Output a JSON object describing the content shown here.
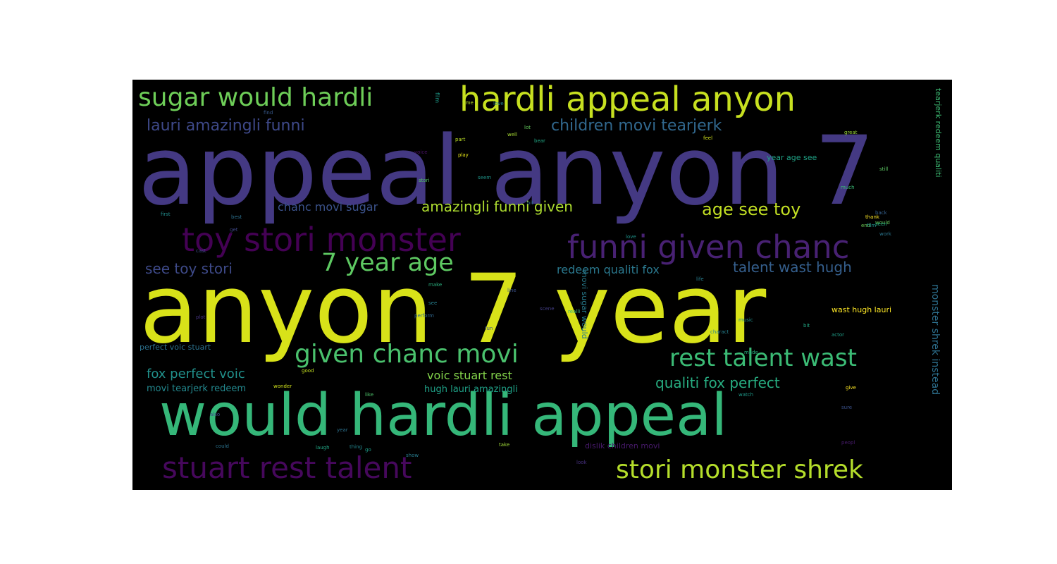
{
  "palette": {
    "background": "#000000",
    "yellow": "#d8e219",
    "green": "#35b779",
    "teal": "#1f9e89",
    "blue": "#31688e",
    "indigo": "#443983",
    "purple": "#440154"
  },
  "words": [
    {
      "text": "appeal anyon 7",
      "color": "#443983"
    },
    {
      "text": "anyon 7 year",
      "color": "#d8e219"
    },
    {
      "text": "would hardli appeal",
      "color": "#35b779"
    },
    {
      "text": "hardli appeal anyon",
      "color": "#c7e020"
    },
    {
      "text": "sugar would hardli",
      "color": "#6ece58"
    },
    {
      "text": "toy stori monster",
      "color": "#440154"
    },
    {
      "text": "funni given chanc",
      "color": "#482173"
    },
    {
      "text": "stuart rest talent",
      "color": "#46085c"
    },
    {
      "text": "stori monster shrek",
      "color": "#b5de2b"
    },
    {
      "text": "given chanc movi",
      "color": "#4ac16d"
    },
    {
      "text": "rest talent wast",
      "color": "#3bbb75"
    },
    {
      "text": "7 year age",
      "color": "#5ec962"
    },
    {
      "text": "lauri amazingli funni",
      "color": "#3e4989"
    },
    {
      "text": "children movi tearjerk",
      "color": "#31688e"
    },
    {
      "text": "amazingli funni given",
      "color": "#addc30"
    },
    {
      "text": "age see toy",
      "color": "#c2df23"
    },
    {
      "text": "chanc movi sugar",
      "color": "#3b528b"
    },
    {
      "text": "see toy stori",
      "color": "#3e4a89"
    },
    {
      "text": "talent wast hugh",
      "color": "#355f8d"
    },
    {
      "text": "redeem qualiti fox",
      "color": "#2a788e"
    },
    {
      "text": "fox perfect voic",
      "color": "#21918c"
    },
    {
      "text": "qualiti fox perfect",
      "color": "#27ad81"
    },
    {
      "text": "voic stuart rest",
      "color": "#84d44b"
    },
    {
      "text": "movi tearjerk redeem",
      "color": "#23888e"
    },
    {
      "text": "hugh lauri amazingli",
      "color": "#1fa187"
    },
    {
      "text": "perfect voic stuart",
      "color": "#2c728e"
    },
    {
      "text": "wast hugh lauri",
      "color": "#fde725"
    },
    {
      "text": "year age see",
      "color": "#20a386"
    },
    {
      "text": "dislik children movi",
      "color": "#481a6c"
    },
    {
      "text": "monster shrek instead",
      "color": "#2d708e"
    },
    {
      "text": "tearjerk redeem qualiti",
      "color": "#3dbc74"
    },
    {
      "text": "movi sugar would",
      "color": "#287c8e"
    },
    {
      "text": "film",
      "color": "#1e9b8a"
    },
    {
      "text": "time",
      "color": "#b8de29"
    },
    {
      "text": "love",
      "color": "#27808e"
    },
    {
      "text": "lot",
      "color": "#65cb5e"
    },
    {
      "text": "well",
      "color": "#a8db34"
    },
    {
      "text": "feel",
      "color": "#d2e21b"
    },
    {
      "text": "great",
      "color": "#9bd93c"
    },
    {
      "text": "part",
      "color": "#bddf26"
    },
    {
      "text": "bear",
      "color": "#22a785"
    },
    {
      "text": "play",
      "color": "#e5e419"
    },
    {
      "text": "seem",
      "color": "#1f968b"
    },
    {
      "text": "much",
      "color": "#3aba76"
    },
    {
      "text": "still",
      "color": "#5cc863"
    },
    {
      "text": "back",
      "color": "#35608d"
    },
    {
      "text": "thank",
      "color": "#fde725"
    },
    {
      "text": "would",
      "color": "#67cc5c"
    },
    {
      "text": "seen",
      "color": "#25ac82"
    },
    {
      "text": "work",
      "color": "#2a768e"
    },
    {
      "text": "end",
      "color": "#70cf57"
    },
    {
      "text": "first",
      "color": "#228d8d"
    },
    {
      "text": "best",
      "color": "#2d718e"
    },
    {
      "text": "get",
      "color": "#3f4788"
    },
    {
      "text": "stori",
      "color": "#54c568"
    },
    {
      "text": "voice",
      "color": "#471063"
    },
    {
      "text": "find",
      "color": "#38598c"
    },
    {
      "text": "life",
      "color": "#287d8e"
    },
    {
      "text": "make",
      "color": "#2ab07f"
    },
    {
      "text": "line",
      "color": "#3b528b"
    },
    {
      "text": "realli",
      "color": "#32b67a"
    },
    {
      "text": "see",
      "color": "#277f8e"
    },
    {
      "text": "scene",
      "color": "#433e85"
    },
    {
      "text": "perform",
      "color": "#31688e"
    },
    {
      "text": "charact",
      "color": "#26818e"
    },
    {
      "text": "bit",
      "color": "#22a884"
    },
    {
      "text": "made",
      "color": "#29af7f"
    },
    {
      "text": "actor",
      "color": "#1f9f88"
    },
    {
      "text": "good",
      "color": "#c5e021"
    },
    {
      "text": "wonder",
      "color": "#d0e11c"
    },
    {
      "text": "like",
      "color": "#4ec36b"
    },
    {
      "text": "year",
      "color": "#2c728e"
    },
    {
      "text": "go",
      "color": "#1e9c89"
    },
    {
      "text": "thing",
      "color": "#24878e"
    },
    {
      "text": "take",
      "color": "#a0da39"
    },
    {
      "text": "look",
      "color": "#46307e"
    },
    {
      "text": "could",
      "color": "#2c738e"
    },
    {
      "text": "show",
      "color": "#287c8e"
    },
    {
      "text": "laugh",
      "color": "#22a785"
    },
    {
      "text": "also",
      "color": "#3f4889"
    },
    {
      "text": "peopl",
      "color": "#481b6d"
    },
    {
      "text": "sure",
      "color": "#3b528b"
    },
    {
      "text": "give",
      "color": "#fde725"
    },
    {
      "text": "watch",
      "color": "#1f9a8a"
    },
    {
      "text": "cast",
      "color": "#3e4c8a"
    },
    {
      "text": "music",
      "color": "#21908d"
    },
    {
      "text": "film",
      "color": "#20928c"
    },
    {
      "text": "bit",
      "color": "#2e6f8e"
    },
    {
      "text": "fun",
      "color": "#3c508b"
    },
    {
      "text": "plot",
      "color": "#46337f"
    },
    {
      "text": "love",
      "color": "#1f948c"
    }
  ]
}
